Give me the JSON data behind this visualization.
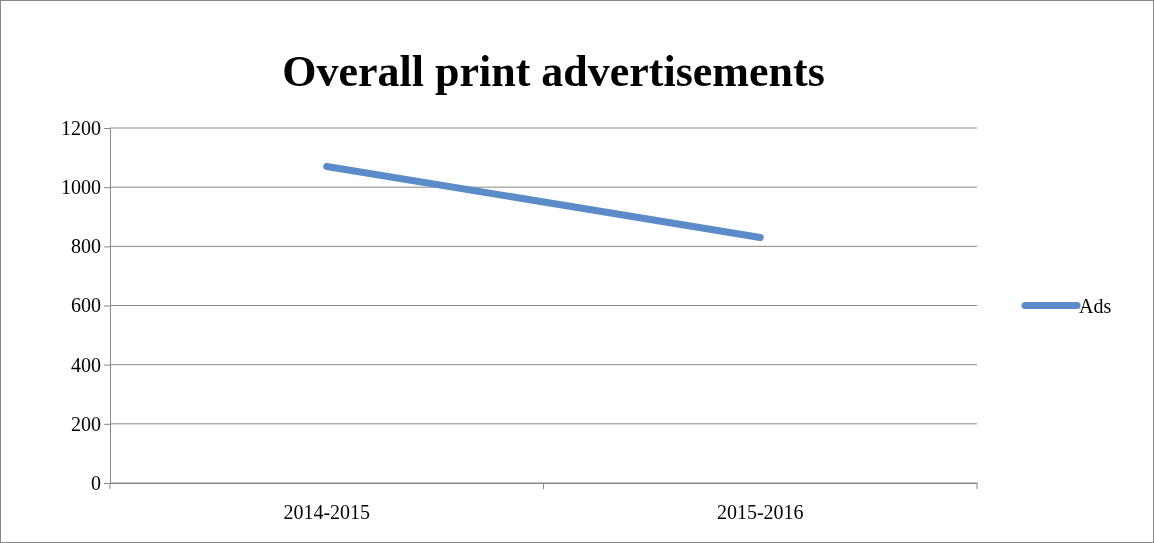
{
  "chart_data": {
    "type": "line",
    "title": "Overall print advertisements",
    "categories": [
      "2014-2015",
      "2015-2016"
    ],
    "series": [
      {
        "name": "Ads",
        "color": "#5b8bc8",
        "values": [
          1070,
          830
        ]
      }
    ],
    "ylim": [
      0,
      1200
    ],
    "yticks": [
      0,
      200,
      400,
      600,
      800,
      1000,
      1200
    ],
    "grid": "y",
    "legend": "right",
    "marker": "none",
    "line_style": "solid"
  }
}
